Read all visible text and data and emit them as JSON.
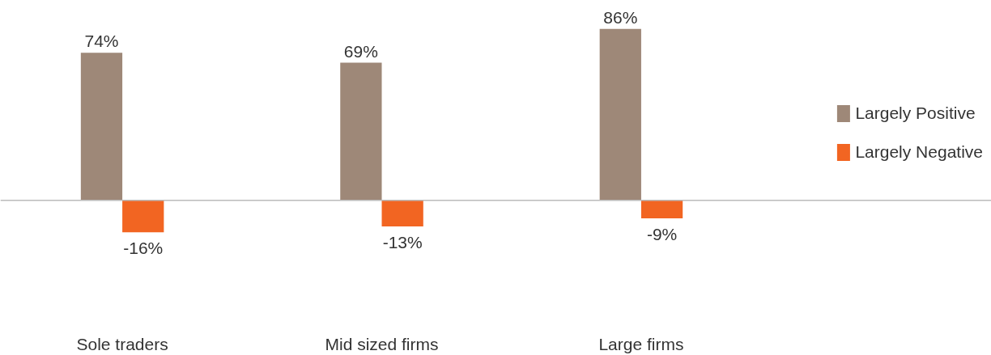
{
  "chart_data": {
    "type": "bar",
    "categories": [
      "Sole traders",
      "Mid sized firms",
      "Large firms"
    ],
    "series": [
      {
        "name": "Largely Positive",
        "color": "#9e8878",
        "values": [
          74,
          69,
          86
        ],
        "value_labels": [
          "74%",
          "69%",
          "86%"
        ]
      },
      {
        "name": "Largely Negative",
        "color": "#f26522",
        "values": [
          -16,
          -13,
          -9
        ],
        "value_labels": [
          "-16%",
          "-13%",
          "-9%"
        ]
      }
    ],
    "grid": false,
    "legend": "right"
  }
}
